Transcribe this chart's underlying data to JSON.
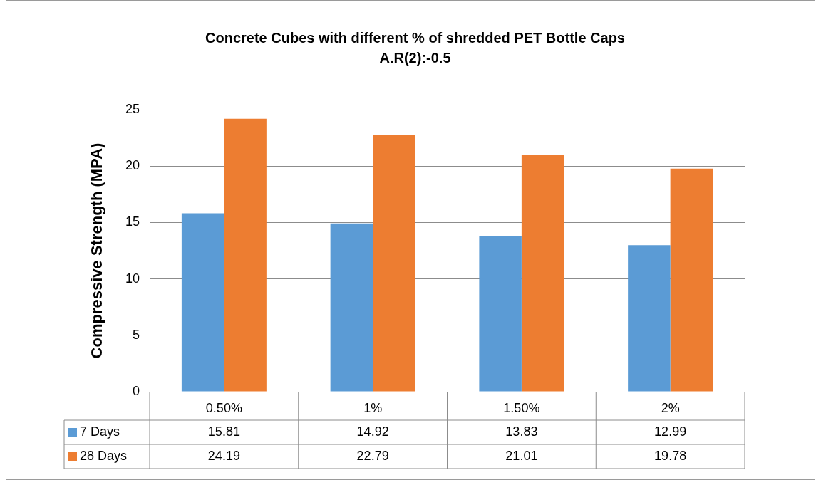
{
  "chart_data": {
    "type": "bar",
    "title": "Concrete Cubes with different % of shredded PET Bottle Caps",
    "subtitle": "A.R(2):-0.5",
    "ylabel": "Compressive Strength (MPA)",
    "categories": [
      "0.50%",
      "1%",
      "1.50%",
      "2%"
    ],
    "series": [
      {
        "name": "7 Days",
        "color": "#5b9bd5",
        "values": [
          15.81,
          14.92,
          13.83,
          12.99
        ]
      },
      {
        "name": "28 Days",
        "color": "#ed7d31",
        "values": [
          24.19,
          22.79,
          21.01,
          19.78
        ]
      }
    ],
    "ylim": [
      0,
      25
    ],
    "yticks": [
      0,
      5,
      10,
      15,
      20,
      25
    ],
    "grid": "y",
    "legend": "bottom",
    "data_labels": true
  }
}
